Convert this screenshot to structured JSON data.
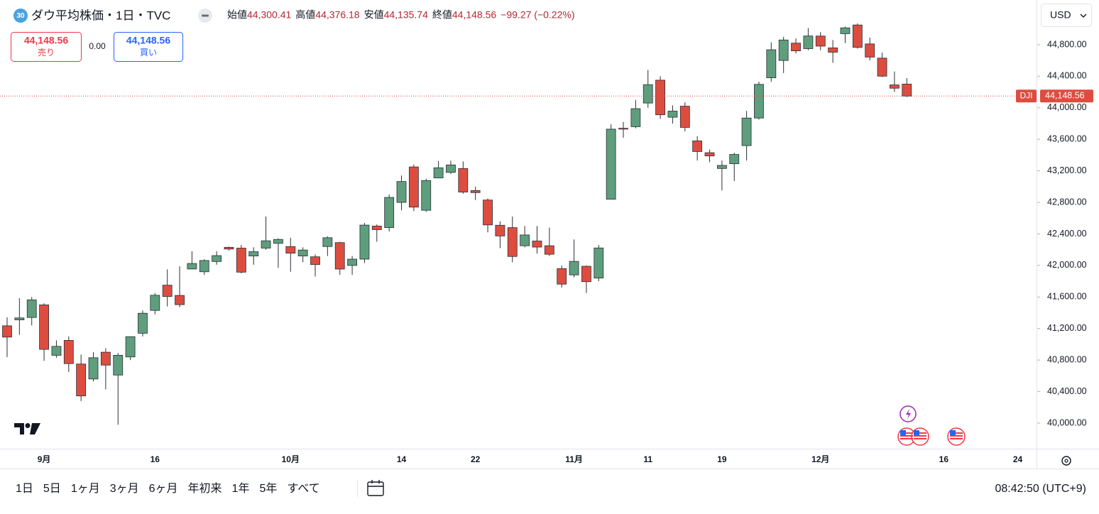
{
  "header": {
    "badge": "30",
    "title": "ダウ平均株価・1日・TVC",
    "ohlc": [
      {
        "label": "始値",
        "value": "44,300.41"
      },
      {
        "label": "高値",
        "value": "44,376.18"
      },
      {
        "label": "安値",
        "value": "44,135.74"
      },
      {
        "label": "終値",
        "value": "44,148.56"
      }
    ],
    "change": "−99.27 (−0.22%)"
  },
  "trade": {
    "sell_price": "44,148.56",
    "sell_label": "売り",
    "spread": "0.00",
    "buy_price": "44,148.56",
    "buy_label": "買い"
  },
  "currency": "USD",
  "toolbar": {
    "ranges": [
      "1日",
      "5日",
      "1ヶ月",
      "3ヶ月",
      "6ヶ月",
      "年初来",
      "1年",
      "5年",
      "すべて"
    ],
    "time": "08:42:50 (UTC+9)"
  },
  "chart_data": {
    "type": "candlestick",
    "symbol": "DJI",
    "categories": [
      null,
      null,
      null,
      "9月",
      null,
      null,
      null,
      null,
      null,
      null,
      null,
      null,
      "16",
      null,
      null,
      null,
      null,
      null,
      null,
      null,
      null,
      null,
      null,
      "10月",
      null,
      null,
      null,
      null,
      null,
      null,
      null,
      null,
      "14",
      null,
      null,
      null,
      null,
      null,
      "22",
      null,
      null,
      null,
      null,
      null,
      null,
      null,
      "11月",
      null,
      null,
      null,
      null,
      null,
      "11",
      null,
      null,
      null,
      null,
      null,
      "19",
      null,
      null,
      null,
      null,
      null,
      null,
      null,
      "12月",
      null,
      null,
      null,
      null,
      null,
      null,
      null,
      null,
      null,
      "16",
      null,
      null,
      null,
      null,
      null,
      "24"
    ],
    "open": [
      41235,
      41310,
      41340,
      41500,
      40860,
      41050,
      40750,
      40560,
      40900,
      40610,
      40840,
      41140,
      41430,
      41750,
      41620,
      41955,
      41920,
      42050,
      42230,
      42220,
      42120,
      42220,
      42280,
      42240,
      42120,
      42110,
      42240,
      42290,
      42000,
      42080,
      42500,
      42480,
      42800,
      43250,
      42700,
      43110,
      43180,
      43230,
      42950,
      42830,
      42510,
      42480,
      42250,
      42310,
      42250,
      41960,
      41880,
      41990,
      41840,
      42840,
      43740,
      43760,
      44060,
      44350,
      43880,
      44020,
      43580,
      43430,
      43230,
      43290,
      43520,
      43870,
      44380,
      44600,
      44820,
      44750,
      44910,
      44760,
      44940,
      45050,
      44810,
      44630,
      44290,
      44300.41,
      null,
      null,
      null,
      null,
      null,
      null,
      null,
      null,
      null
    ],
    "high": [
      41342,
      41585,
      41600,
      41520,
      41050,
      41100,
      40870,
      40900,
      40950,
      40890,
      41100,
      41430,
      41650,
      41950,
      41990,
      42180,
      42080,
      42180,
      42240,
      42260,
      42230,
      42620,
      42345,
      42350,
      42230,
      42140,
      42370,
      42300,
      42120,
      42540,
      42520,
      42900,
      43140,
      43280,
      43100,
      43325,
      43330,
      43320,
      43000,
      42850,
      42560,
      42620,
      42500,
      42500,
      42480,
      42000,
      42330,
      42000,
      42260,
      43790,
      43820,
      44100,
      44480,
      44400,
      44030,
      44070,
      43640,
      43470,
      43330,
      43430,
      43960,
      44330,
      44830,
      44900,
      44880,
      45010,
      44960,
      44860,
      45030,
      45070,
      44890,
      44700,
      44460,
      44376.18,
      null,
      null,
      null,
      null,
      null,
      null,
      null,
      null,
      null
    ],
    "low": [
      40838,
      41120,
      41240,
      40790,
      40830,
      40650,
      40280,
      40530,
      40430,
      39980,
      40800,
      41100,
      41380,
      41480,
      41470,
      41960,
      41880,
      42010,
      42190,
      41900,
      42010,
      42200,
      41970,
      41920,
      42040,
      41860,
      42120,
      41880,
      41880,
      42030,
      42300,
      42430,
      42700,
      42690,
      42680,
      43110,
      43160,
      42910,
      42830,
      42420,
      42220,
      42040,
      42230,
      42150,
      42120,
      41720,
      41850,
      41650,
      41800,
      42840,
      43620,
      43740,
      44000,
      43860,
      43800,
      43700,
      43330,
      43310,
      42950,
      43070,
      43330,
      43850,
      44330,
      44440,
      44690,
      44730,
      44730,
      44570,
      44820,
      44750,
      44600,
      44390,
      44200,
      44135.74,
      null,
      null,
      null,
      null,
      null,
      null,
      null,
      null,
      null
    ],
    "close": [
      41091,
      41335,
      41563,
      40936,
      40974,
      40755,
      40345,
      40830,
      40736,
      40861,
      41097,
      41394,
      41622,
      41606,
      41503,
      42025,
      42063,
      42125,
      42208,
      41915,
      42175,
      42313,
      42330,
      42156,
      42196,
      42011,
      42352,
      41954,
      42080,
      42512,
      42454,
      42863,
      43065,
      42740,
      43077,
      43239,
      43275,
      42931,
      42924,
      42514,
      42374,
      42114,
      42387,
      42233,
      42142,
      41763,
      42052,
      41794,
      42222,
      43729,
      43729,
      43989,
      44293,
      43911,
      43958,
      43751,
      43445,
      43389,
      43269,
      43408,
      43870,
      44297,
      44736,
      44860,
      44722,
      44911,
      44782,
      44705,
      45014,
      44766,
      44643,
      44401,
      44248,
      44148.56,
      null,
      null,
      null,
      null,
      null,
      null,
      null,
      null,
      null
    ],
    "up_color": "#5e9e7d",
    "down_color": "#dd4d3f",
    "ylim": [
      39676,
      45367
    ],
    "yticks": [
      {
        "value": 40000,
        "label": "40,000.00"
      },
      {
        "value": 40400,
        "label": "40,400.00"
      },
      {
        "value": 40800,
        "label": "40,800.00"
      },
      {
        "value": 41200,
        "label": "41,200.00"
      },
      {
        "value": 41600,
        "label": "41,600.00"
      },
      {
        "value": 42000,
        "label": "42,000.00"
      },
      {
        "value": 42400,
        "label": "42,400.00"
      },
      {
        "value": 42800,
        "label": "42,800.00"
      },
      {
        "value": 43200,
        "label": "43,200.00"
      },
      {
        "value": 43600,
        "label": "43,600.00"
      },
      {
        "value": 44000,
        "label": "44,000.00"
      },
      {
        "value": 44400,
        "label": "44,400.00"
      },
      {
        "value": 44800,
        "label": "44,800.00"
      }
    ],
    "last_price": {
      "value": 44148.56,
      "label": "44,148.56"
    },
    "grid": false
  }
}
